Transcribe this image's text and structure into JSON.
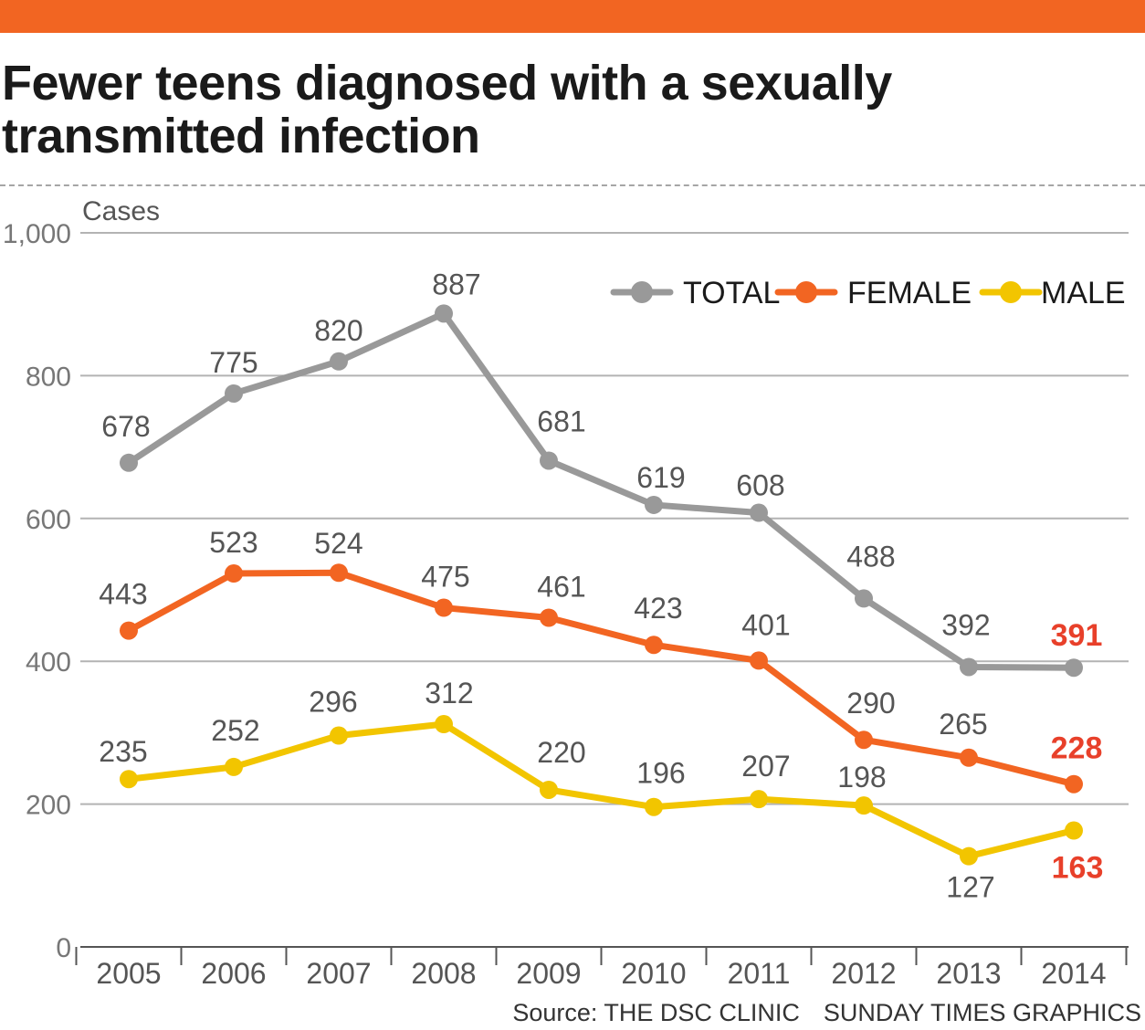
{
  "header": {
    "title": "Fewer teens diagnosed with a sexually transmitted infection",
    "accent_color": "#f26522"
  },
  "footer": {
    "source": "Source: THE DSC CLINIC",
    "credit": "SUNDAY TIMES GRAPHICS"
  },
  "chart_data": {
    "type": "line",
    "title": "Fewer teens diagnosed with a sexually transmitted infection",
    "xlabel": "",
    "ylabel": "Cases",
    "ylim": [
      0,
      1000
    ],
    "yticks": [
      0,
      200,
      400,
      600,
      800,
      1000
    ],
    "ytick_labels": [
      "0",
      "200",
      "400",
      "600",
      "800",
      "1,000"
    ],
    "categories": [
      "2005",
      "2006",
      "2007",
      "2008",
      "2009",
      "2010",
      "2011",
      "2012",
      "2013",
      "2014"
    ],
    "legend_position": "top-right",
    "grid": true,
    "series": [
      {
        "name": "TOTAL",
        "color": "#999999",
        "values": [
          678,
          775,
          820,
          887,
          681,
          619,
          608,
          488,
          392,
          391
        ]
      },
      {
        "name": "FEMALE",
        "color": "#f26522",
        "values": [
          443,
          523,
          524,
          475,
          461,
          423,
          401,
          290,
          265,
          228
        ]
      },
      {
        "name": "MALE",
        "color": "#f2c500",
        "values": [
          235,
          252,
          296,
          312,
          220,
          196,
          207,
          198,
          127,
          163
        ]
      }
    ],
    "highlight_color": "#e8402a"
  }
}
